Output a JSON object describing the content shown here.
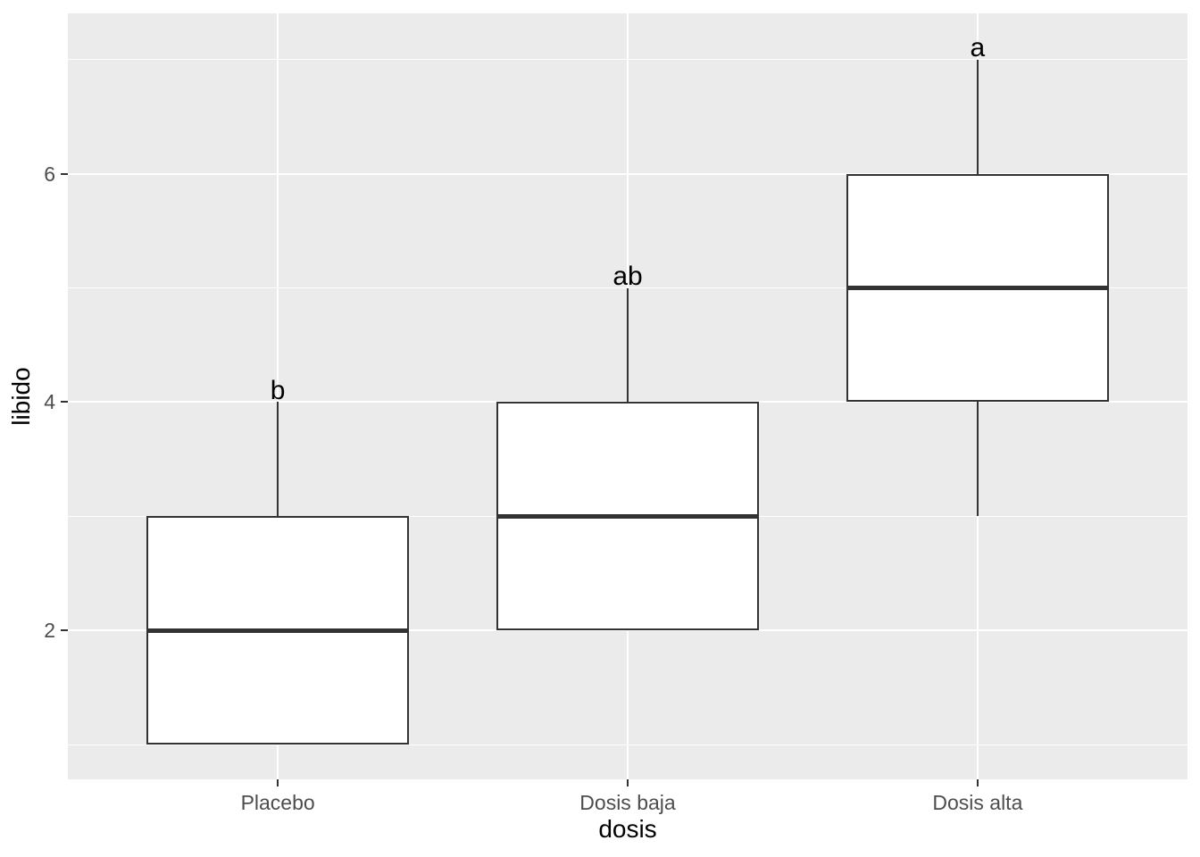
{
  "chart_data": {
    "type": "boxplot",
    "title": "",
    "xlabel": "dosis",
    "ylabel": "libido",
    "categories": [
      "Placebo",
      "Dosis baja",
      "Dosis alta"
    ],
    "series": [
      {
        "name": "Placebo",
        "min": 1,
        "q1": 1,
        "median": 2,
        "q3": 3,
        "max": 4,
        "sig_label": "b",
        "sig_label_y": 4.1
      },
      {
        "name": "Dosis baja",
        "min": 2,
        "q1": 2,
        "median": 3,
        "q3": 4,
        "max": 5,
        "sig_label": "ab",
        "sig_label_y": 5.1
      },
      {
        "name": "Dosis alta",
        "min": 3,
        "q1": 4,
        "median": 5,
        "q3": 6,
        "max": 7,
        "sig_label": "a",
        "sig_label_y": 7.1
      }
    ],
    "y_major_ticks": [
      2,
      4,
      6
    ],
    "y_minor_gridlines": [
      1,
      3,
      5,
      7
    ],
    "ylim": [
      0.695,
      7.405
    ],
    "box_width_fraction": 0.75,
    "grid": true,
    "legend": "none"
  },
  "colors": {
    "panel_background": "#EBEBEB",
    "gridline": "#FFFFFF",
    "box_fill": "#FFFFFF",
    "box_border": "#333333",
    "median_line": "#333333",
    "whisker": "#333333",
    "tick_mark": "#333333",
    "axis_text": "#4D4D4D",
    "axis_title": "#000000",
    "annotation_text": "#000000"
  }
}
